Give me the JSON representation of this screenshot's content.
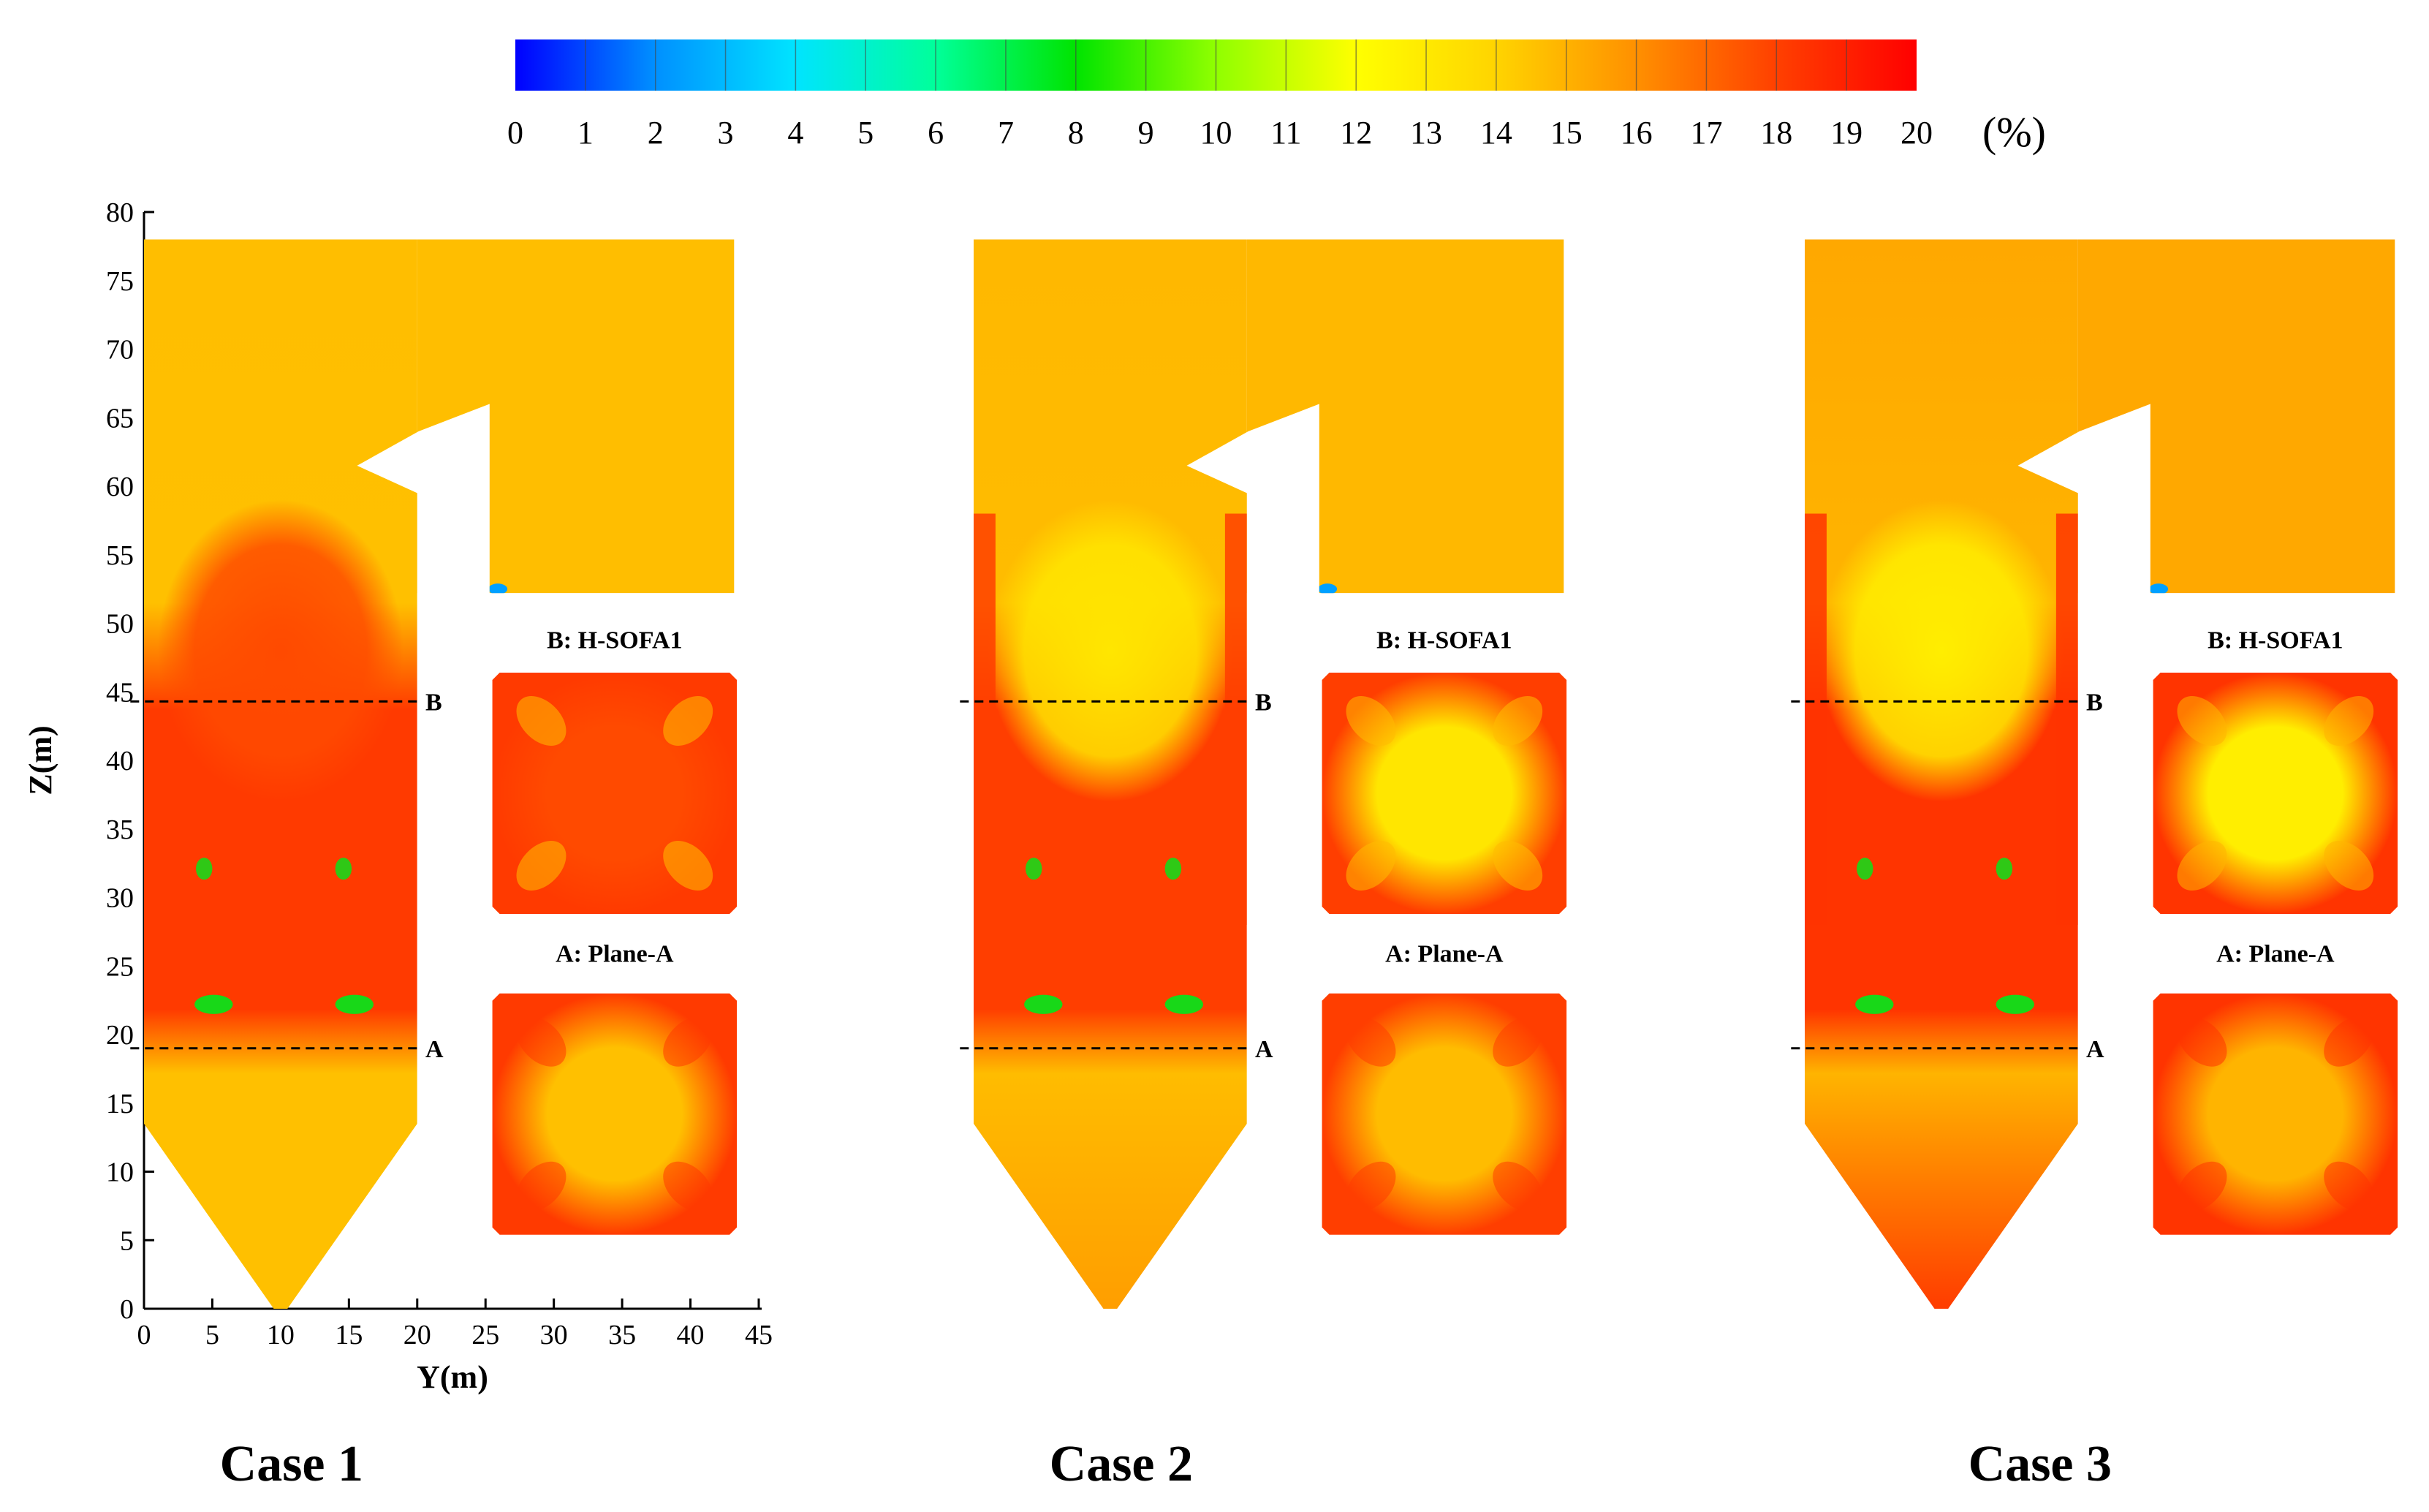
{
  "colorbar": {
    "ticks": [
      "0",
      "1",
      "2",
      "3",
      "4",
      "5",
      "6",
      "7",
      "8",
      "9",
      "10",
      "11",
      "12",
      "13",
      "14",
      "15",
      "16",
      "17",
      "18",
      "19",
      "20"
    ],
    "unit": "(%)",
    "colors": [
      "#0000ff",
      "#0090ff",
      "#00e4ff",
      "#00ff9a",
      "#00e400",
      "#90ff00",
      "#ffff00",
      "#ffd400",
      "#ff9000",
      "#ff4000",
      "#ff0000"
    ]
  },
  "axes": {
    "xlabel": "Y(m)",
    "ylabel": "Z(m)",
    "x_ticks": [
      "0",
      "5",
      "10",
      "15",
      "20",
      "25",
      "30",
      "35",
      "40",
      "45"
    ],
    "y_ticks": [
      "0",
      "5",
      "10",
      "15",
      "20",
      "25",
      "30",
      "35",
      "40",
      "45",
      "50",
      "55",
      "60",
      "65",
      "70",
      "75",
      "80"
    ],
    "xlim": [
      0,
      45
    ],
    "ylim": [
      0,
      80
    ]
  },
  "plane_lines": [
    {
      "letter": "B",
      "z": 44.3
    },
    {
      "letter": "A",
      "z": 19.0
    }
  ],
  "insets": {
    "top_title": "B: H-SOFA1",
    "bottom_title": "A: Plane-A"
  },
  "cases": [
    {
      "title": "Case 1",
      "base_color": "#ffc000",
      "hopper_color": "#ffc000",
      "combustion_color": "#ff3a00",
      "top_color": "#ffbe00",
      "core_color": "#ff4a00",
      "burner_color": "#18d818"
    },
    {
      "title": "Case 2",
      "base_color": "#ffbc00",
      "hopper_color": "#ff9e00",
      "combustion_color": "#ff3e00",
      "top_color": "#ffb800",
      "core_color": "#ffe600",
      "burner_color": "#18d818"
    },
    {
      "title": "Case 3",
      "base_color": "#ffb400",
      "hopper_color": "#ff3c00",
      "combustion_color": "#ff3400",
      "top_color": "#ffa800",
      "core_color": "#ffee00",
      "burner_color": "#18d818"
    }
  ]
}
